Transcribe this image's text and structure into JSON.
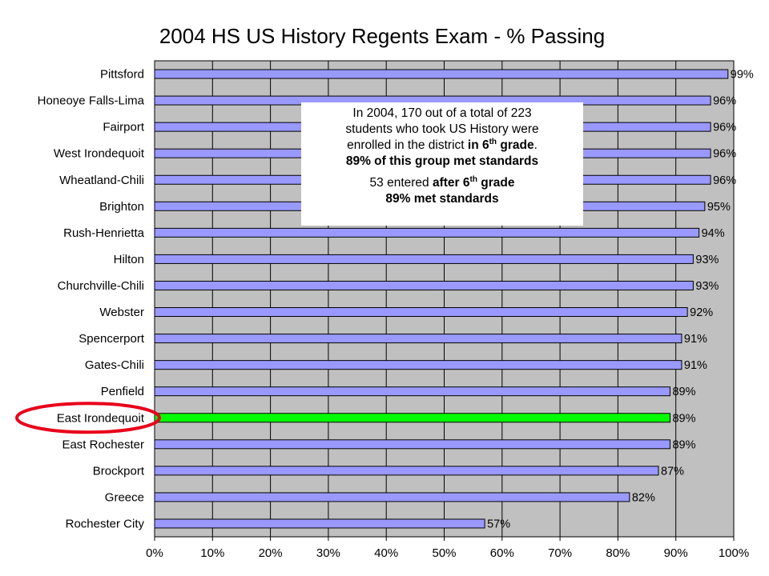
{
  "chart_data": {
    "type": "bar",
    "orientation": "horizontal",
    "title": "2004 HS US History Regents Exam - % Passing",
    "categories": [
      "Pittsford",
      "Honeoye Falls-Lima",
      "Fairport",
      "West Irondequoit",
      "Wheatland-Chili",
      "Brighton",
      "Rush-Henrietta",
      "Hilton",
      "Churchville-Chili",
      "Webster",
      "Spencerport",
      "Gates-Chili",
      "Penfield",
      "East Irondequoit",
      "East Rochester",
      "Brockport",
      "Greece",
      "Rochester City"
    ],
    "values": [
      99,
      96,
      96,
      96,
      96,
      95,
      94,
      93,
      93,
      92,
      91,
      91,
      89,
      89,
      89,
      87,
      82,
      57
    ],
    "value_labels": [
      "99%",
      "96%",
      "96%",
      "96%",
      "96%",
      "95%",
      "94%",
      "93%",
      "93%",
      "92%",
      "91%",
      "91%",
      "89%",
      "89%",
      "89%",
      "87%",
      "82%",
      "57%"
    ],
    "xlim": [
      0,
      100
    ],
    "xticks": [
      "0%",
      "10%",
      "20%",
      "30%",
      "40%",
      "50%",
      "60%",
      "70%",
      "80%",
      "90%",
      "100%"
    ],
    "grid": true,
    "highlight_category": "East Irondequoit",
    "colors": {
      "bar": "#9999ff",
      "highlight_bar": "#00ff00",
      "plot_background": "#c0c0c0",
      "circle": "#e8001a"
    }
  },
  "callout": {
    "l1": "In 2004, 170 out of a total of 223",
    "l2": "students who took US History were",
    "l3a": "enrolled in the district ",
    "l3b": "in 6",
    "l3sup": "th",
    "l3c": " grade",
    "l3d": ".",
    "l4": "89% of this group met standards",
    "l5a": "53 entered ",
    "l5b": "after 6",
    "l5sup": "th",
    "l5c": " grade",
    "l6": "89% met standards"
  }
}
